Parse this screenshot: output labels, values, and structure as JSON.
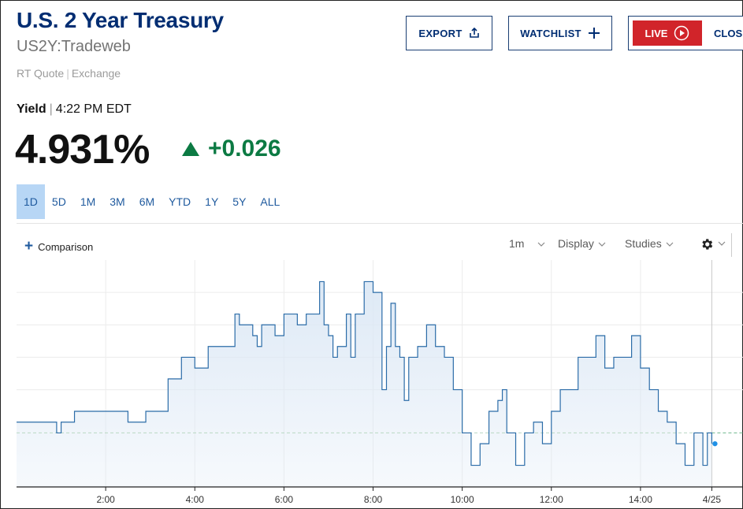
{
  "header": {
    "title": "U.S. 2 Year Treasury",
    "symbol": "US2Y:Tradeweb",
    "quote_type": "RT Quote",
    "quote_source": "Exchange"
  },
  "actions": {
    "export_label": "EXPORT",
    "watchlist_label": "WATCHLIST",
    "live_label": "LIVE",
    "close_label": "CLOSE"
  },
  "quote": {
    "label": "Yield",
    "time": "4:22 PM EDT",
    "price": "4.931%",
    "change": "+0.026",
    "direction": "up",
    "change_color": "#0c7a43"
  },
  "ranges": [
    {
      "label": "1D",
      "active": true
    },
    {
      "label": "5D",
      "active": false
    },
    {
      "label": "1M",
      "active": false
    },
    {
      "label": "3M",
      "active": false
    },
    {
      "label": "6M",
      "active": false
    },
    {
      "label": "YTD",
      "active": false
    },
    {
      "label": "1Y",
      "active": false
    },
    {
      "label": "5Y",
      "active": false
    },
    {
      "label": "ALL",
      "active": false
    }
  ],
  "toolbar": {
    "comparison_label": "Comparison",
    "interval_label": "1m",
    "display_label": "Display",
    "studies_label": "Studies",
    "settings_icon": "gear-icon"
  },
  "chart_data": {
    "type": "area",
    "xlabel": "",
    "ylabel": "",
    "x_tick_labels": [
      "2:00",
      "4:00",
      "6:00",
      "8:00",
      "10:00",
      "12:00",
      "14:00",
      "4/25"
    ],
    "x_range_hours": [
      0.0,
      16.3
    ],
    "session_end_hour": 15.6,
    "y_range": [
      4.895,
      4.937
    ],
    "previous_close": 4.905,
    "line_color": "#2b6ca8",
    "fill_color": "#dce8f5",
    "grid": true,
    "x": [
      0.0,
      0.5,
      0.9,
      1.0,
      1.3,
      1.5,
      1.9,
      2.1,
      2.5,
      2.9,
      3.0,
      3.3,
      3.4,
      3.6,
      3.7,
      3.9,
      4.0,
      4.1,
      4.3,
      4.6,
      4.9,
      5.0,
      5.3,
      5.4,
      5.5,
      5.8,
      6.0,
      6.3,
      6.5,
      6.8,
      6.9,
      7.0,
      7.1,
      7.2,
      7.4,
      7.5,
      7.6,
      7.8,
      8.0,
      8.2,
      8.3,
      8.4,
      8.5,
      8.6,
      8.7,
      8.8,
      9.0,
      9.2,
      9.4,
      9.6,
      9.8,
      10.0,
      10.2,
      10.4,
      10.6,
      10.8,
      10.9,
      11.0,
      11.2,
      11.4,
      11.6,
      11.8,
      12.0,
      12.2,
      12.4,
      12.6,
      12.8,
      13.0,
      13.2,
      13.4,
      13.6,
      13.8,
      14.0,
      14.2,
      14.4,
      14.6,
      14.8,
      15.0,
      15.2,
      15.4,
      15.5,
      15.6
    ],
    "y": [
      4.907,
      4.907,
      4.905,
      4.907,
      4.909,
      4.909,
      4.909,
      4.909,
      4.907,
      4.909,
      4.909,
      4.909,
      4.915,
      4.915,
      4.919,
      4.919,
      4.917,
      4.917,
      4.921,
      4.921,
      4.927,
      4.925,
      4.923,
      4.921,
      4.925,
      4.923,
      4.927,
      4.925,
      4.927,
      4.933,
      4.925,
      4.923,
      4.919,
      4.921,
      4.927,
      4.919,
      4.927,
      4.933,
      4.931,
      4.913,
      4.921,
      4.929,
      4.921,
      4.919,
      4.911,
      4.919,
      4.921,
      4.925,
      4.921,
      4.919,
      4.913,
      4.905,
      4.899,
      4.903,
      4.909,
      4.911,
      4.913,
      4.905,
      4.899,
      4.905,
      4.907,
      4.903,
      4.909,
      4.913,
      4.913,
      4.919,
      4.919,
      4.923,
      4.917,
      4.919,
      4.919,
      4.923,
      4.917,
      4.913,
      4.909,
      4.907,
      4.903,
      4.899,
      4.905,
      4.899,
      4.905,
      4.903
    ]
  }
}
